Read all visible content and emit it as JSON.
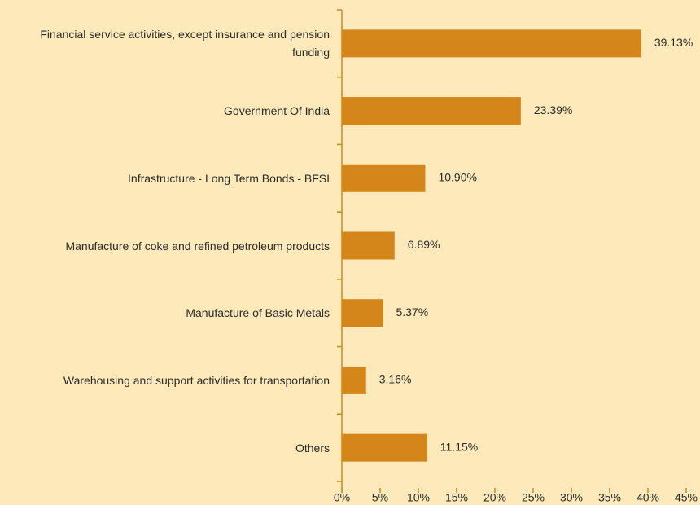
{
  "chart_data": {
    "type": "bar",
    "orientation": "horizontal",
    "categories": [
      "Financial service activities, except insurance and pension funding",
      "Government Of India",
      "Infrastructure - Long Term Bonds - BFSI",
      "Manufacture of coke and refined petroleum products",
      "Manufacture of Basic Metals",
      "Warehousing and support activities for transportation",
      "Others"
    ],
    "values": [
      39.13,
      23.39,
      10.9,
      6.89,
      5.37,
      3.16,
      11.15
    ],
    "value_labels": [
      "39.13%",
      "23.39%",
      "10.90%",
      "6.89%",
      "5.37%",
      "3.16%",
      "11.15%"
    ],
    "color": "#d4861b",
    "xlim": [
      0,
      45
    ],
    "xticks": [
      {
        "value": 0,
        "label": "0%"
      },
      {
        "value": 5,
        "label": "5%"
      },
      {
        "value": 10,
        "label": "10%"
      },
      {
        "value": 15,
        "label": "15%"
      },
      {
        "value": 20,
        "label": "20%"
      },
      {
        "value": 25,
        "label": "25%"
      },
      {
        "value": 30,
        "label": "30%"
      },
      {
        "value": 35,
        "label": "35%"
      },
      {
        "value": 40,
        "label": "40%"
      },
      {
        "value": 45,
        "label": "45%"
      }
    ],
    "grid": false
  }
}
